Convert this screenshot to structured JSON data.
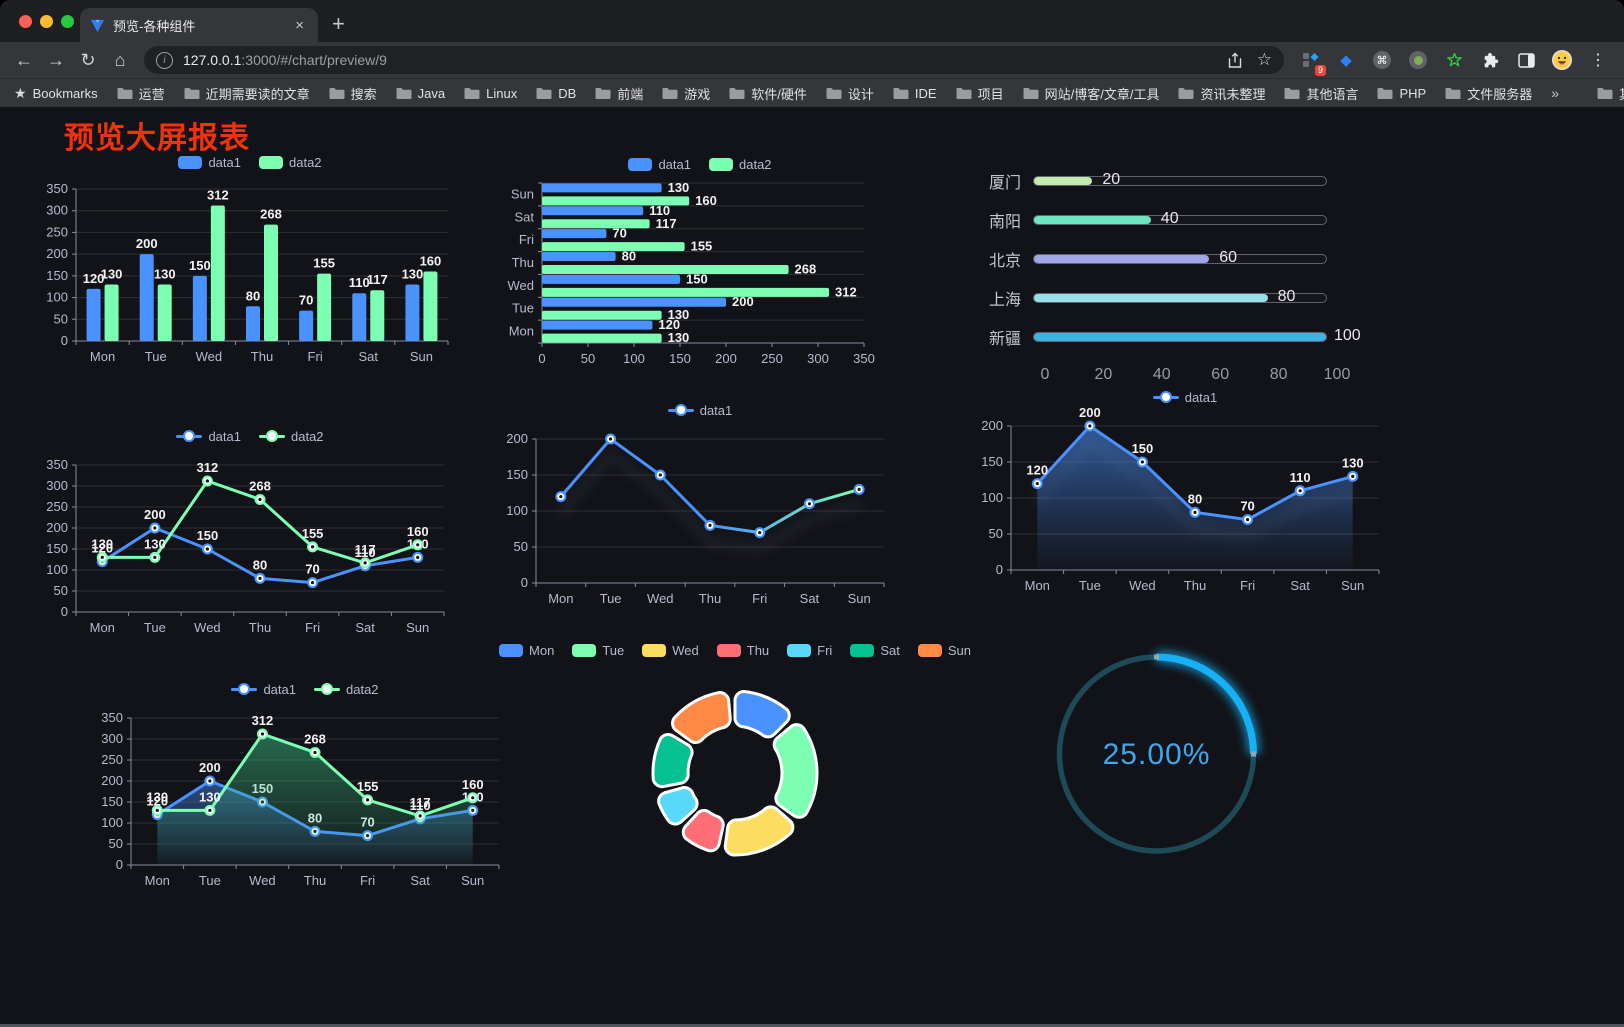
{
  "browser": {
    "tab": {
      "title": "预览-各种组件",
      "close": "×",
      "new_tab": "+"
    },
    "nav": {
      "back": "←",
      "forward": "→",
      "reload": "↻",
      "home": "⌂"
    },
    "url": {
      "info": "i",
      "host": "127.0.0.1",
      "rest": ":3000/#/chart/preview/9"
    },
    "extensions": {
      "badge": "9",
      "command": "⌘",
      "star": "☆",
      "menu": "⋮"
    },
    "bookmarks": [
      {
        "icon": "star",
        "label": "Bookmarks"
      },
      {
        "icon": "folder",
        "label": "运营"
      },
      {
        "icon": "folder",
        "label": "近期需要读的文章"
      },
      {
        "icon": "folder",
        "label": "搜索"
      },
      {
        "icon": "folder",
        "label": "Java"
      },
      {
        "icon": "folder",
        "label": "Linux"
      },
      {
        "icon": "folder",
        "label": "DB"
      },
      {
        "icon": "folder",
        "label": "前端"
      },
      {
        "icon": "folder",
        "label": "游戏"
      },
      {
        "icon": "folder",
        "label": "软件/硬件"
      },
      {
        "icon": "folder",
        "label": "设计"
      },
      {
        "icon": "folder",
        "label": "IDE"
      },
      {
        "icon": "folder",
        "label": "项目"
      },
      {
        "icon": "folder",
        "label": "网站/博客/文章/工具"
      },
      {
        "icon": "folder",
        "label": "资讯未整理"
      },
      {
        "icon": "folder",
        "label": "其他语言"
      },
      {
        "icon": "folder",
        "label": "PHP"
      },
      {
        "icon": "folder",
        "label": "文件服务器"
      },
      {
        "icon": "chevrons",
        "label": "»"
      },
      {
        "icon": "separator",
        "label": ""
      },
      {
        "icon": "folder",
        "label": "其他书签"
      }
    ]
  },
  "page": {
    "title": "预览大屏报表",
    "title_color": "#f2320e"
  },
  "chart_data": [
    {
      "type": "bar",
      "categories": [
        "Mon",
        "Tue",
        "Wed",
        "Thu",
        "Fri",
        "Sat",
        "Sun"
      ],
      "series": [
        {
          "name": "data1",
          "color": "#4992ff",
          "values": [
            120,
            200,
            150,
            80,
            70,
            110,
            130
          ]
        },
        {
          "name": "data2",
          "color": "#7cffb2",
          "values": [
            130,
            130,
            312,
            268,
            155,
            117,
            160
          ]
        }
      ],
      "ylim": [
        0,
        350
      ],
      "yticks": [
        0,
        50,
        100,
        150,
        200,
        250,
        300,
        350
      ],
      "show_labels": true,
      "grid": true,
      "legend_position": "top"
    },
    {
      "type": "bar-horizontal",
      "categories": [
        "Mon",
        "Tue",
        "Wed",
        "Thu",
        "Fri",
        "Sat",
        "Sun"
      ],
      "series": [
        {
          "name": "data1",
          "color": "#4992ff",
          "values": [
            120,
            200,
            150,
            80,
            70,
            110,
            130
          ]
        },
        {
          "name": "data2",
          "color": "#7cffb2",
          "values": [
            130,
            130,
            312,
            268,
            155,
            117,
            160
          ]
        }
      ],
      "xlim": [
        0,
        350
      ],
      "xticks": [
        0,
        50,
        100,
        150,
        200,
        250,
        300,
        350
      ],
      "show_labels": true,
      "grid": true,
      "legend_position": "top"
    },
    {
      "type": "progress",
      "max": 100,
      "xticks": [
        0,
        20,
        40,
        60,
        80,
        100
      ],
      "items": [
        {
          "label": "厦门",
          "value": 20,
          "color": "#c4ebad"
        },
        {
          "label": "南阳",
          "value": 40,
          "color": "#6be6c1"
        },
        {
          "label": "北京",
          "value": 60,
          "color": "#a0a7e6"
        },
        {
          "label": "上海",
          "value": 80,
          "color": "#96dee8"
        },
        {
          "label": "新疆",
          "value": 100,
          "color": "#3fb1e3"
        }
      ]
    },
    {
      "type": "line",
      "categories": [
        "Mon",
        "Tue",
        "Wed",
        "Thu",
        "Fri",
        "Sat",
        "Sun"
      ],
      "series": [
        {
          "name": "data1",
          "color": "#4992ff",
          "values": [
            120,
            200,
            150,
            80,
            70,
            110,
            130
          ]
        },
        {
          "name": "data2",
          "color": "#7cffb2",
          "values": [
            130,
            130,
            312,
            268,
            155,
            117,
            160
          ]
        }
      ],
      "ylim": [
        0,
        350
      ],
      "yticks": [
        0,
        50,
        100,
        150,
        200,
        250,
        300,
        350
      ],
      "show_labels": true,
      "legend_position": "top"
    },
    {
      "type": "line",
      "categories": [
        "Mon",
        "Tue",
        "Wed",
        "Thu",
        "Fri",
        "Sat",
        "Sun"
      ],
      "series": [
        {
          "name": "data1",
          "color": "#4992ff",
          "gradient": [
            "#4992ff",
            "#4992ff",
            "#7cffb2"
          ],
          "values": [
            120,
            200,
            150,
            80,
            70,
            110,
            130
          ]
        }
      ],
      "ylim": [
        0,
        200
      ],
      "yticks": [
        0,
        50,
        100,
        150,
        200
      ],
      "show_labels": false,
      "shadow": true,
      "legend_position": "top"
    },
    {
      "type": "line",
      "categories": [
        "Mon",
        "Tue",
        "Wed",
        "Thu",
        "Fri",
        "Sat",
        "Sun"
      ],
      "series": [
        {
          "name": "data1",
          "color": "#4992ff",
          "area": [
            "rgba(73,146,255,0.55)",
            "rgba(73,146,255,0.02)"
          ],
          "values": [
            120,
            200,
            150,
            80,
            70,
            110,
            130
          ]
        }
      ],
      "ylim": [
        0,
        200
      ],
      "yticks": [
        0,
        50,
        100,
        150,
        200
      ],
      "show_labels": true,
      "shadow": true,
      "legend_position": "top"
    },
    {
      "type": "line",
      "categories": [
        "Mon",
        "Tue",
        "Wed",
        "Thu",
        "Fri",
        "Sat",
        "Sun"
      ],
      "series": [
        {
          "name": "data1",
          "color": "#4992ff",
          "area": [
            "rgba(73,146,255,0.45)",
            "rgba(73,146,255,0.02)"
          ],
          "values": [
            120,
            200,
            150,
            80,
            70,
            110,
            130
          ]
        },
        {
          "name": "data2",
          "color": "#7cffb2",
          "area": [
            "rgba(60,190,130,0.5)",
            "rgba(60,190,130,0.03)"
          ],
          "values": [
            130,
            130,
            312,
            268,
            155,
            117,
            160
          ]
        }
      ],
      "ylim": [
        0,
        350
      ],
      "yticks": [
        0,
        50,
        100,
        150,
        200,
        250,
        300,
        350
      ],
      "show_labels": true,
      "legend_position": "top"
    },
    {
      "type": "pie",
      "items": [
        {
          "label": "Mon",
          "value": 120,
          "color": "#4992ff"
        },
        {
          "label": "Tue",
          "value": 200,
          "color": "#7cffb2"
        },
        {
          "label": "Wed",
          "value": 150,
          "color": "#fddd60"
        },
        {
          "label": "Thu",
          "value": 80,
          "color": "#ff6e76"
        },
        {
          "label": "Fri",
          "value": 70,
          "color": "#58d9f9"
        },
        {
          "label": "Sat",
          "value": 110,
          "color": "#05c091"
        },
        {
          "label": "Sun",
          "value": 130,
          "color": "#ff8a45"
        }
      ],
      "legend_position": "top"
    },
    {
      "type": "gauge",
      "value": 25,
      "label": "25.00%",
      "color": "#18b0f5",
      "track_color": "#1e4a58",
      "text_color": "#3ea6ee"
    }
  ]
}
